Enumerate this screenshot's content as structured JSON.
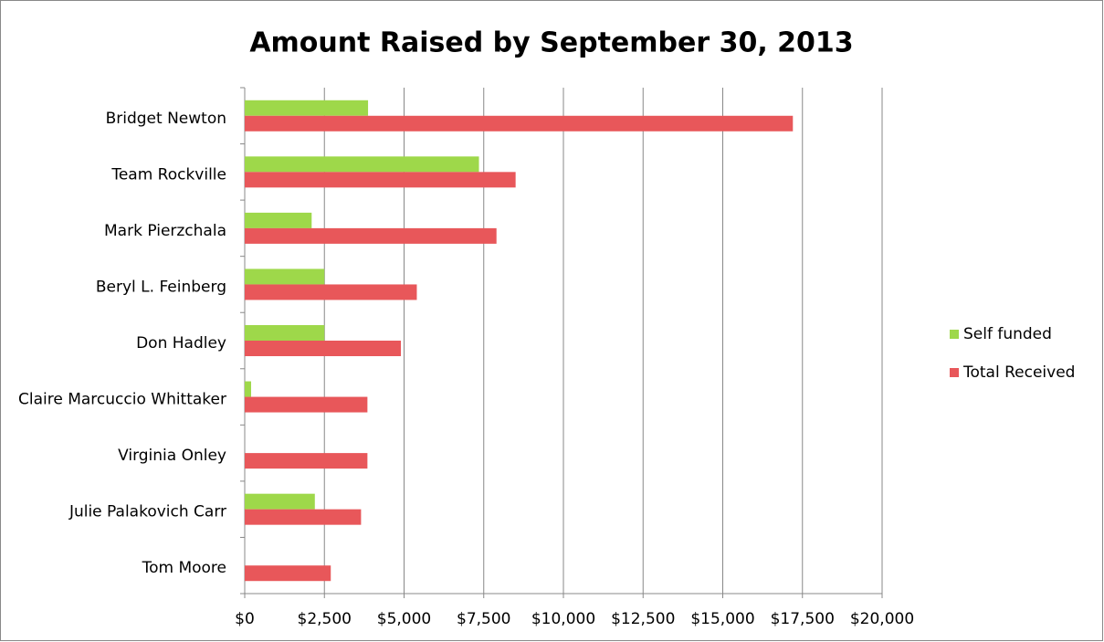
{
  "chart_data": {
    "type": "barh",
    "title": "Amount Raised by September 30, 2013",
    "categories": [
      "Bridget Newton",
      "Team Rockville",
      "Mark Pierzchala",
      "Beryl L. Feinberg",
      "Don Hadley",
      "Claire Marcuccio Whittaker",
      "Virginia Onley",
      "Julie Palakovich Carr",
      "Tom Moore"
    ],
    "series": [
      {
        "name": "Self funded",
        "color": "#9ed84a",
        "values": [
          3870,
          7350,
          2100,
          2500,
          2500,
          200,
          0,
          2200,
          0
        ]
      },
      {
        "name": "Total Received",
        "color": "#e8575a",
        "values": [
          17200,
          8500,
          7900,
          5400,
          4900,
          3850,
          3850,
          3650,
          2700
        ]
      }
    ],
    "xlim": [
      0,
      20000
    ],
    "xticks": [
      {
        "value": 0,
        "label": "$0"
      },
      {
        "value": 2500,
        "label": "$2,500"
      },
      {
        "value": 5000,
        "label": "$5,000"
      },
      {
        "value": 7500,
        "label": "$7,500"
      },
      {
        "value": 10000,
        "label": "$10,000"
      },
      {
        "value": 12500,
        "label": "$12,500"
      },
      {
        "value": 15000,
        "label": "$15,000"
      },
      {
        "value": 17500,
        "label": "$17,500"
      },
      {
        "value": 20000,
        "label": "$20,000"
      }
    ],
    "grid": true,
    "legend": "right"
  }
}
